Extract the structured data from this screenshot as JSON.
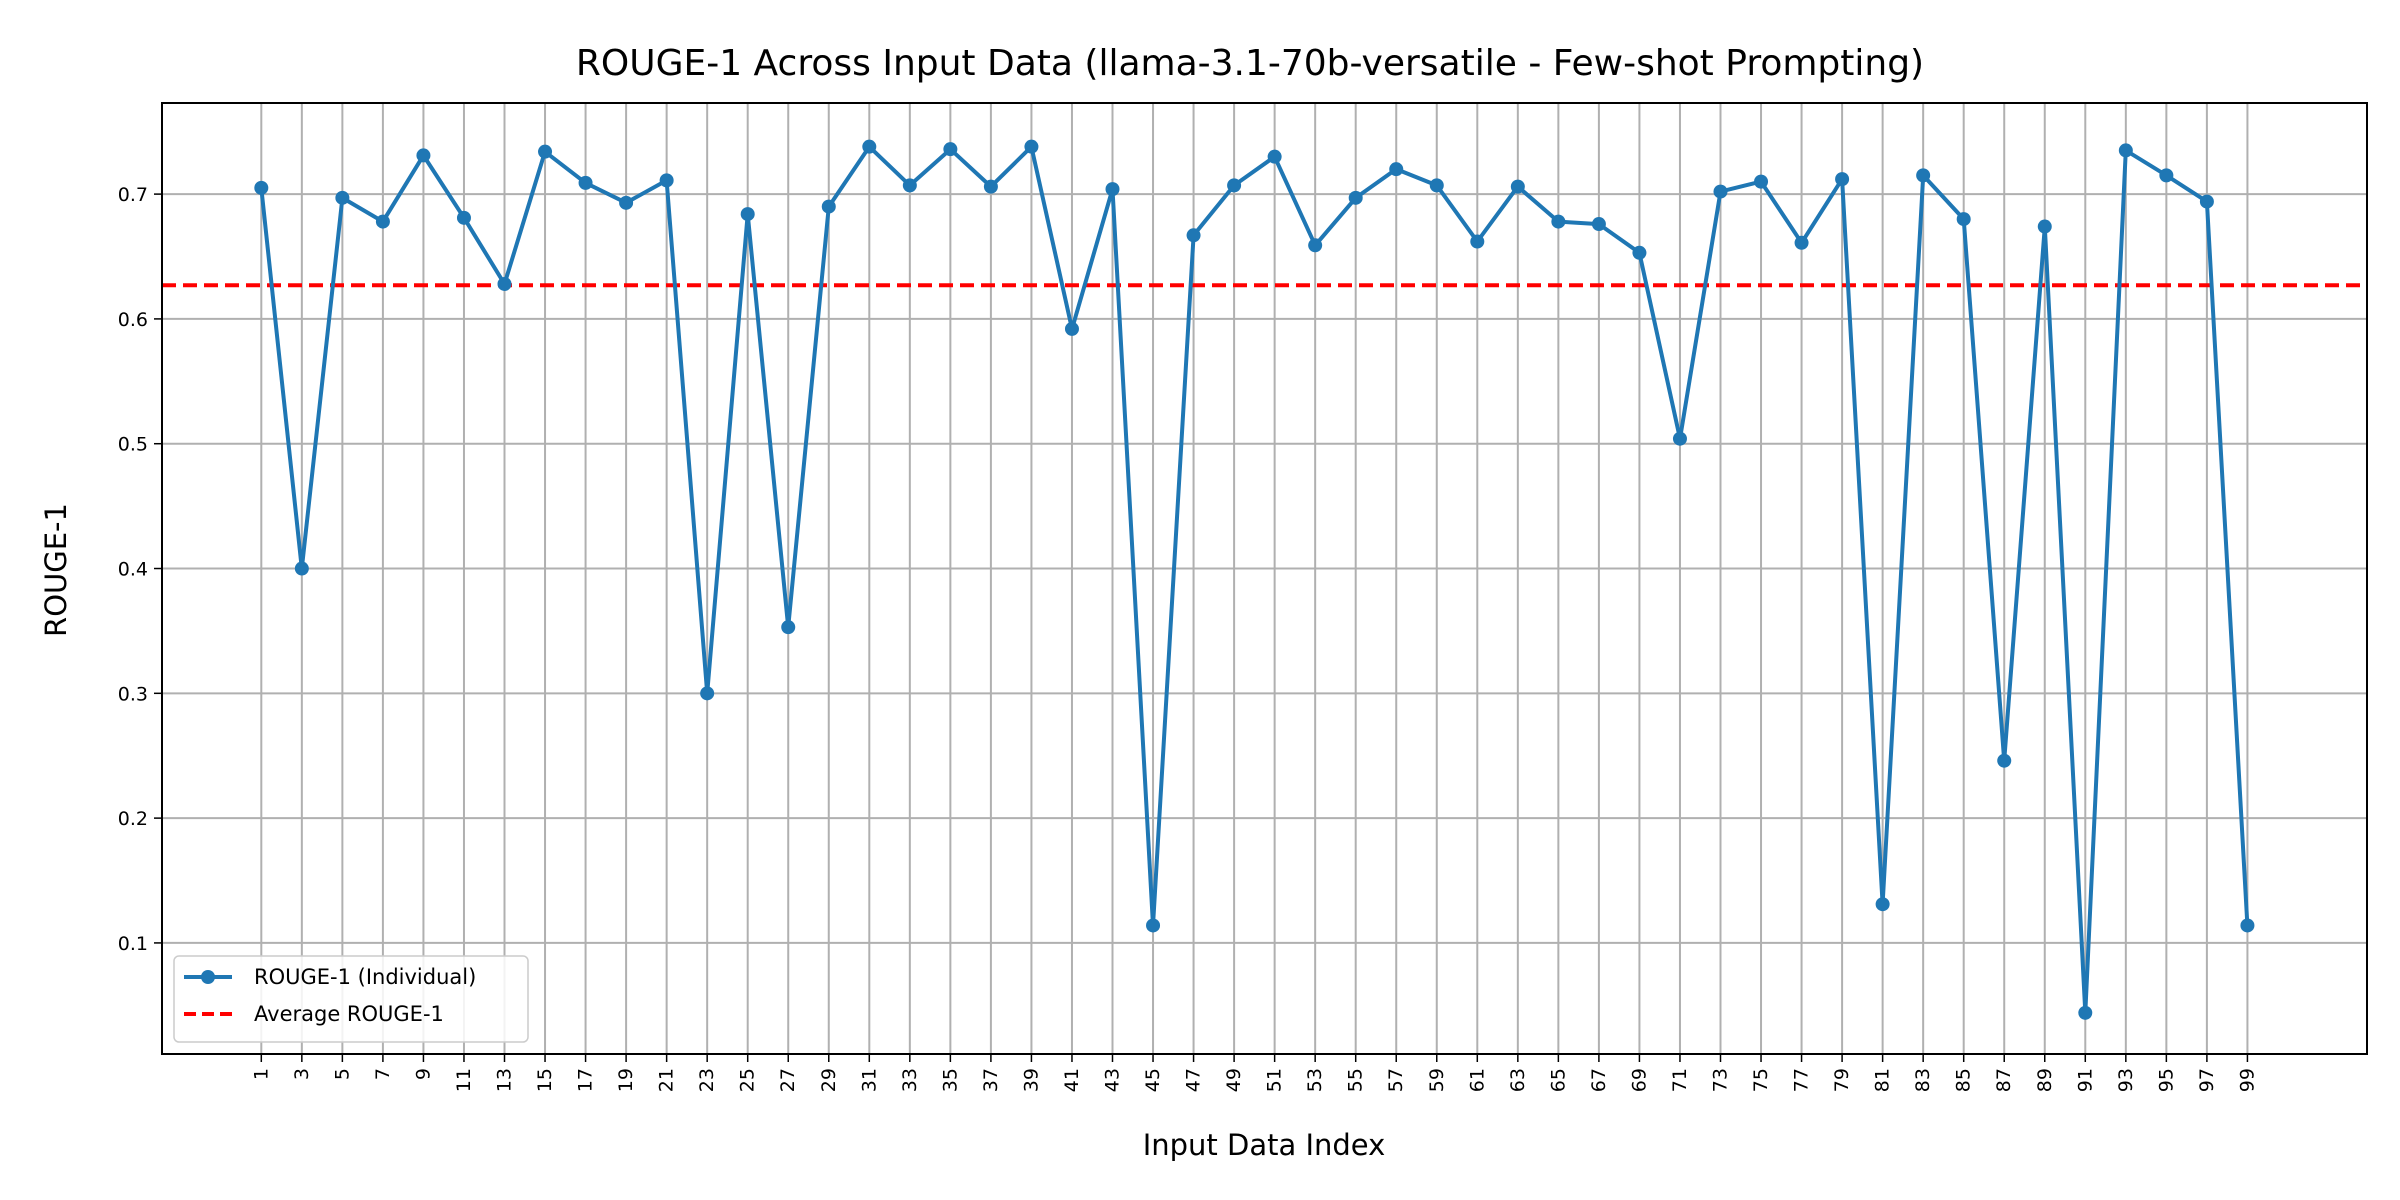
{
  "chart_data": {
    "type": "line",
    "title": "ROUGE-1 Across Input Data (llama-3.1-70b-versatile - Few-shot Prompting)",
    "xlabel": "Input Data Index",
    "ylabel": "ROUGE-1",
    "x": [
      1,
      3,
      5,
      7,
      9,
      11,
      13,
      15,
      17,
      19,
      21,
      23,
      25,
      27,
      29,
      31,
      33,
      35,
      37,
      39,
      41,
      43,
      45,
      47,
      49,
      51,
      53,
      55,
      57,
      59,
      61,
      63,
      65,
      67,
      69,
      71,
      73,
      75,
      77,
      79,
      81,
      83,
      85,
      87,
      89,
      91,
      93,
      95,
      97,
      99
    ],
    "xticks": [
      "1",
      "3",
      "5",
      "7",
      "9",
      "11",
      "13",
      "15",
      "17",
      "19",
      "21",
      "23",
      "25",
      "27",
      "29",
      "31",
      "33",
      "35",
      "37",
      "39",
      "41",
      "43",
      "45",
      "47",
      "49",
      "51",
      "53",
      "55",
      "57",
      "59",
      "61",
      "63",
      "65",
      "67",
      "69",
      "71",
      "73",
      "75",
      "77",
      "79",
      "81",
      "83",
      "85",
      "87",
      "89",
      "91",
      "93",
      "95",
      "97",
      "99"
    ],
    "yticks": [
      "0.1",
      "0.2",
      "0.3",
      "0.4",
      "0.5",
      "0.6",
      "0.7"
    ],
    "ytick_values": [
      0.1,
      0.2,
      0.3,
      0.4,
      0.5,
      0.6,
      0.7
    ],
    "xlim": [
      -3.9,
      104.9
    ],
    "ylim": [
      0.011,
      0.773
    ],
    "grid": true,
    "legend_position": "lower-left",
    "series": [
      {
        "name": "ROUGE-1 (Individual)",
        "color": "#1f77b4",
        "style": "line-with-markers",
        "values": [
          0.705,
          0.4,
          0.697,
          0.678,
          0.731,
          0.681,
          0.628,
          0.734,
          0.709,
          0.693,
          0.711,
          0.3,
          0.684,
          0.353,
          0.69,
          0.738,
          0.707,
          0.736,
          0.706,
          0.738,
          0.592,
          0.704,
          0.114,
          0.667,
          0.707,
          0.73,
          0.659,
          0.697,
          0.72,
          0.707,
          0.662,
          0.706,
          0.678,
          0.676,
          0.653,
          0.504,
          0.702,
          0.71,
          0.661,
          0.712,
          0.131,
          0.715,
          0.68,
          0.246,
          0.674,
          0.044,
          0.735,
          0.715,
          0.694,
          0.114
        ]
      },
      {
        "name": "Average ROUGE-1",
        "color": "#ff0000",
        "style": "dashed-horizontal",
        "value": 0.627
      }
    ]
  }
}
